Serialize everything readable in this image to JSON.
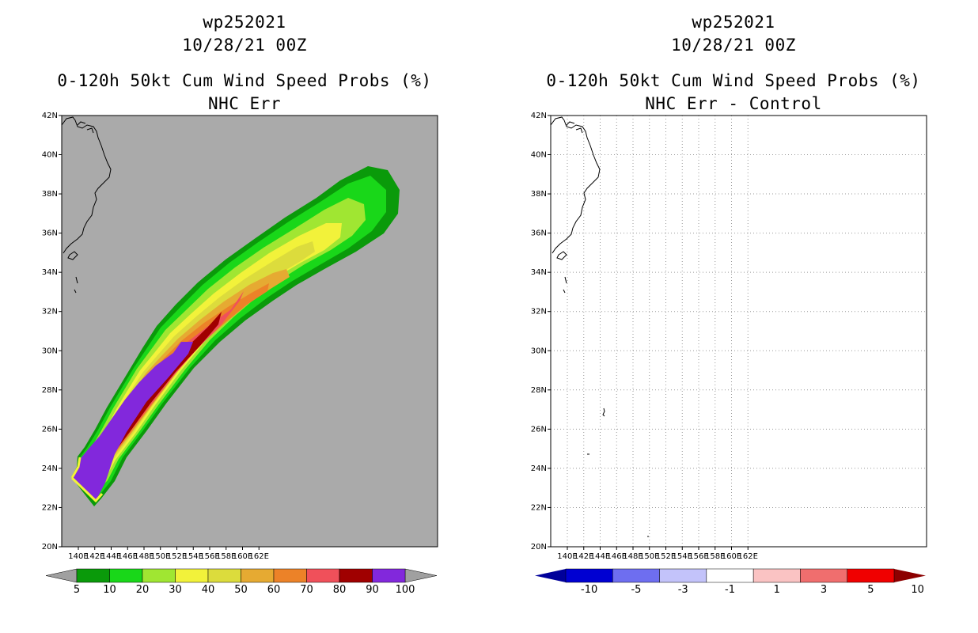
{
  "left_panel": {
    "storm_id": "wp252021",
    "datetime": "10/28/21 00Z",
    "product": "0-120h 50kt Cum Wind Speed Probs (%)",
    "subtitle": "NHC Err",
    "map_background": "#aaaaaa",
    "legend": {
      "labels": [
        "5",
        "10",
        "20",
        "30",
        "40",
        "50",
        "60",
        "70",
        "80",
        "90",
        "100"
      ],
      "colors": [
        "#0a9a0a",
        "#19d719",
        "#a0e632",
        "#f2f23a",
        "#dcdc3c",
        "#e6aa32",
        "#ec8228",
        "#f0505a",
        "#a00000",
        "#8228dc"
      ],
      "end_color": "#a0a0a0"
    }
  },
  "right_panel": {
    "storm_id": "wp252021",
    "datetime": "10/28/21 00Z",
    "product": "0-120h 50kt Cum Wind Speed Probs (%)",
    "subtitle": "NHC Err - Control",
    "map_background": "#ffffff",
    "legend": {
      "labels": [
        "-10",
        "-5",
        "-3",
        "-1",
        "1",
        "3",
        "5",
        "10"
      ],
      "colors": [
        "#0000d2",
        "#6e6ef0",
        "#c3c3fa",
        "#ffffff",
        "#fac3c3",
        "#f06e6e",
        "#f00000"
      ],
      "low_end_color": "#00009a",
      "high_end_color": "#8c0000"
    }
  },
  "map": {
    "lon_labels": [
      "140E",
      "142E",
      "144E",
      "146E",
      "148E",
      "150E",
      "152E",
      "154E",
      "156E",
      "158E",
      "160E",
      "162E"
    ],
    "lat_labels": [
      "20N",
      "22N",
      "24N",
      "26N",
      "28N",
      "30N",
      "32N",
      "34N",
      "36N",
      "38N",
      "40N",
      "42N"
    ]
  }
}
